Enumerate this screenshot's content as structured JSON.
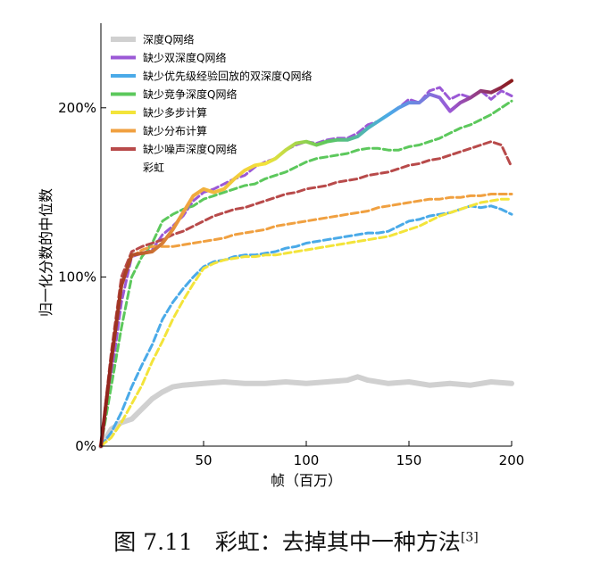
{
  "chart_data": {
    "type": "line",
    "title": "",
    "xlabel": "帧（百万）",
    "ylabel": "归一化分数的中位数",
    "xlim": [
      0,
      200
    ],
    "ylim": [
      0,
      250
    ],
    "x_ticks": [
      50,
      100,
      150,
      200
    ],
    "x_tick_labels": [
      "50",
      "100",
      "150",
      "200"
    ],
    "y_ticks": [
      0,
      100,
      200
    ],
    "y_tick_labels": [
      "0%",
      "100%",
      "200%"
    ],
    "grid": false,
    "legend_position": "top-left",
    "series": [
      {
        "name": "深度Q网络",
        "color": "#d0d0d0",
        "style": "solid",
        "width": 6,
        "points": [
          [
            0,
            0
          ],
          [
            5,
            10
          ],
          [
            10,
            14
          ],
          [
            15,
            16
          ],
          [
            20,
            22
          ],
          [
            25,
            28
          ],
          [
            30,
            32
          ],
          [
            35,
            35
          ],
          [
            40,
            36
          ],
          [
            50,
            37
          ],
          [
            60,
            38
          ],
          [
            70,
            37
          ],
          [
            80,
            37
          ],
          [
            90,
            38
          ],
          [
            100,
            37
          ],
          [
            110,
            38
          ],
          [
            120,
            39
          ],
          [
            125,
            41
          ],
          [
            130,
            39
          ],
          [
            140,
            37
          ],
          [
            150,
            38
          ],
          [
            160,
            36
          ],
          [
            170,
            37
          ],
          [
            180,
            36
          ],
          [
            190,
            38
          ],
          [
            200,
            37
          ]
        ]
      },
      {
        "name": "缺少双深度Q网络",
        "color": "#9b59d6",
        "style": "dashed",
        "width": 3,
        "points": [
          [
            0,
            0
          ],
          [
            5,
            40
          ],
          [
            10,
            85
          ],
          [
            15,
            112
          ],
          [
            20,
            114
          ],
          [
            25,
            116
          ],
          [
            30,
            125
          ],
          [
            35,
            130
          ],
          [
            40,
            136
          ],
          [
            45,
            145
          ],
          [
            50,
            150
          ],
          [
            55,
            152
          ],
          [
            60,
            155
          ],
          [
            65,
            158
          ],
          [
            70,
            160
          ],
          [
            75,
            165
          ],
          [
            80,
            168
          ],
          [
            85,
            170
          ],
          [
            90,
            175
          ],
          [
            95,
            178
          ],
          [
            100,
            180
          ],
          [
            105,
            179
          ],
          [
            110,
            181
          ],
          [
            115,
            182
          ],
          [
            120,
            182
          ],
          [
            125,
            185
          ],
          [
            130,
            190
          ],
          [
            135,
            192
          ],
          [
            140,
            196
          ],
          [
            145,
            200
          ],
          [
            150,
            205
          ],
          [
            155,
            203
          ],
          [
            160,
            210
          ],
          [
            165,
            212
          ],
          [
            170,
            205
          ],
          [
            175,
            208
          ],
          [
            180,
            206
          ],
          [
            185,
            210
          ],
          [
            190,
            205
          ],
          [
            195,
            210
          ],
          [
            200,
            207
          ]
        ]
      },
      {
        "name": "缺少优先级经验回放的双深度Q网络",
        "color": "#4aaae8",
        "style": "dashed",
        "width": 3,
        "points": [
          [
            0,
            0
          ],
          [
            5,
            8
          ],
          [
            10,
            20
          ],
          [
            15,
            35
          ],
          [
            20,
            48
          ],
          [
            25,
            60
          ],
          [
            30,
            75
          ],
          [
            35,
            85
          ],
          [
            40,
            93
          ],
          [
            45,
            100
          ],
          [
            50,
            106
          ],
          [
            55,
            109
          ],
          [
            60,
            110
          ],
          [
            65,
            112
          ],
          [
            70,
            113
          ],
          [
            75,
            113
          ],
          [
            80,
            114
          ],
          [
            85,
            115
          ],
          [
            90,
            117
          ],
          [
            95,
            118
          ],
          [
            100,
            120
          ],
          [
            105,
            121
          ],
          [
            110,
            122
          ],
          [
            115,
            123
          ],
          [
            120,
            124
          ],
          [
            125,
            125
          ],
          [
            130,
            126
          ],
          [
            135,
            126
          ],
          [
            140,
            127
          ],
          [
            145,
            130
          ],
          [
            150,
            133
          ],
          [
            155,
            134
          ],
          [
            160,
            136
          ],
          [
            165,
            137
          ],
          [
            170,
            138
          ],
          [
            175,
            140
          ],
          [
            180,
            142
          ],
          [
            185,
            141
          ],
          [
            190,
            142
          ],
          [
            195,
            140
          ],
          [
            200,
            137
          ]
        ]
      },
      {
        "name": "缺少竞争深度Q网络",
        "color": "#5cc85c",
        "style": "dashed",
        "width": 3,
        "points": [
          [
            0,
            0
          ],
          [
            5,
            35
          ],
          [
            10,
            70
          ],
          [
            15,
            100
          ],
          [
            20,
            112
          ],
          [
            25,
            120
          ],
          [
            30,
            133
          ],
          [
            35,
            137
          ],
          [
            40,
            140
          ],
          [
            45,
            142
          ],
          [
            50,
            146
          ],
          [
            55,
            148
          ],
          [
            60,
            150
          ],
          [
            65,
            152
          ],
          [
            70,
            154
          ],
          [
            75,
            155
          ],
          [
            80,
            158
          ],
          [
            85,
            160
          ],
          [
            90,
            162
          ],
          [
            95,
            165
          ],
          [
            100,
            168
          ],
          [
            105,
            170
          ],
          [
            110,
            171
          ],
          [
            115,
            172
          ],
          [
            120,
            173
          ],
          [
            125,
            175
          ],
          [
            130,
            176
          ],
          [
            135,
            176
          ],
          [
            140,
            175
          ],
          [
            145,
            175
          ],
          [
            150,
            177
          ],
          [
            155,
            178
          ],
          [
            160,
            180
          ],
          [
            165,
            182
          ],
          [
            170,
            185
          ],
          [
            175,
            188
          ],
          [
            180,
            190
          ],
          [
            185,
            193
          ],
          [
            190,
            196
          ],
          [
            195,
            200
          ],
          [
            200,
            204
          ]
        ]
      },
      {
        "name": "缺少多步计算",
        "color": "#f3e43a",
        "style": "dashed",
        "width": 3,
        "points": [
          [
            0,
            0
          ],
          [
            5,
            5
          ],
          [
            10,
            14
          ],
          [
            15,
            25
          ],
          [
            20,
            36
          ],
          [
            25,
            50
          ],
          [
            30,
            62
          ],
          [
            35,
            75
          ],
          [
            40,
            86
          ],
          [
            45,
            96
          ],
          [
            50,
            105
          ],
          [
            55,
            108
          ],
          [
            60,
            110
          ],
          [
            65,
            111
          ],
          [
            70,
            112
          ],
          [
            75,
            112
          ],
          [
            80,
            113
          ],
          [
            85,
            113
          ],
          [
            90,
            114
          ],
          [
            95,
            115
          ],
          [
            100,
            116
          ],
          [
            105,
            117
          ],
          [
            110,
            118
          ],
          [
            115,
            119
          ],
          [
            120,
            120
          ],
          [
            125,
            121
          ],
          [
            130,
            122
          ],
          [
            135,
            123
          ],
          [
            140,
            124
          ],
          [
            145,
            126
          ],
          [
            150,
            128
          ],
          [
            155,
            130
          ],
          [
            160,
            133
          ],
          [
            165,
            136
          ],
          [
            170,
            138
          ],
          [
            175,
            140
          ],
          [
            180,
            142
          ],
          [
            185,
            144
          ],
          [
            190,
            145
          ],
          [
            195,
            146
          ],
          [
            200,
            146
          ]
        ]
      },
      {
        "name": "缺少分布计算",
        "color": "#f0a040",
        "style": "dashed",
        "width": 3,
        "points": [
          [
            0,
            0
          ],
          [
            5,
            50
          ],
          [
            10,
            95
          ],
          [
            15,
            112
          ],
          [
            20,
            116
          ],
          [
            25,
            118
          ],
          [
            30,
            118
          ],
          [
            35,
            118
          ],
          [
            40,
            119
          ],
          [
            45,
            120
          ],
          [
            50,
            121
          ],
          [
            55,
            122
          ],
          [
            60,
            123
          ],
          [
            65,
            125
          ],
          [
            70,
            126
          ],
          [
            75,
            127
          ],
          [
            80,
            128
          ],
          [
            85,
            130
          ],
          [
            90,
            131
          ],
          [
            95,
            132
          ],
          [
            100,
            133
          ],
          [
            105,
            134
          ],
          [
            110,
            135
          ],
          [
            115,
            136
          ],
          [
            120,
            137
          ],
          [
            125,
            138
          ],
          [
            130,
            139
          ],
          [
            135,
            141
          ],
          [
            140,
            142
          ],
          [
            145,
            143
          ],
          [
            150,
            144
          ],
          [
            155,
            145
          ],
          [
            160,
            146
          ],
          [
            165,
            146
          ],
          [
            170,
            147
          ],
          [
            175,
            147
          ],
          [
            180,
            148
          ],
          [
            185,
            148
          ],
          [
            190,
            149
          ],
          [
            195,
            149
          ],
          [
            200,
            149
          ]
        ]
      },
      {
        "name": "缺少噪声深度Q网络",
        "color": "#b84a4a",
        "style": "dashed",
        "width": 3,
        "points": [
          [
            0,
            0
          ],
          [
            5,
            55
          ],
          [
            10,
            100
          ],
          [
            15,
            115
          ],
          [
            20,
            118
          ],
          [
            25,
            120
          ],
          [
            30,
            122
          ],
          [
            35,
            125
          ],
          [
            40,
            127
          ],
          [
            45,
            130
          ],
          [
            50,
            133
          ],
          [
            55,
            136
          ],
          [
            60,
            138
          ],
          [
            65,
            140
          ],
          [
            70,
            141
          ],
          [
            75,
            143
          ],
          [
            80,
            145
          ],
          [
            85,
            147
          ],
          [
            90,
            149
          ],
          [
            95,
            150
          ],
          [
            100,
            152
          ],
          [
            105,
            153
          ],
          [
            110,
            154
          ],
          [
            115,
            156
          ],
          [
            120,
            157
          ],
          [
            125,
            158
          ],
          [
            130,
            160
          ],
          [
            135,
            161
          ],
          [
            140,
            162
          ],
          [
            145,
            164
          ],
          [
            150,
            166
          ],
          [
            155,
            167
          ],
          [
            160,
            169
          ],
          [
            165,
            170
          ],
          [
            170,
            172
          ],
          [
            175,
            174
          ],
          [
            180,
            176
          ],
          [
            185,
            178
          ],
          [
            190,
            180
          ],
          [
            195,
            178
          ],
          [
            200,
            165
          ]
        ]
      },
      {
        "name": "彩虹",
        "color": "#8b1a1a",
        "style": "rainbow",
        "width": 4,
        "points": [
          [
            0,
            0
          ],
          [
            5,
            50
          ],
          [
            10,
            95
          ],
          [
            15,
            113
          ],
          [
            20,
            114
          ],
          [
            25,
            115
          ],
          [
            30,
            120
          ],
          [
            35,
            128
          ],
          [
            40,
            138
          ],
          [
            45,
            148
          ],
          [
            50,
            152
          ],
          [
            55,
            150
          ],
          [
            60,
            152
          ],
          [
            65,
            158
          ],
          [
            70,
            163
          ],
          [
            75,
            166
          ],
          [
            80,
            167
          ],
          [
            85,
            170
          ],
          [
            90,
            175
          ],
          [
            95,
            179
          ],
          [
            100,
            180
          ],
          [
            105,
            178
          ],
          [
            110,
            180
          ],
          [
            115,
            181
          ],
          [
            120,
            181
          ],
          [
            125,
            183
          ],
          [
            130,
            188
          ],
          [
            135,
            192
          ],
          [
            140,
            196
          ],
          [
            145,
            200
          ],
          [
            150,
            203
          ],
          [
            155,
            203
          ],
          [
            160,
            208
          ],
          [
            165,
            206
          ],
          [
            170,
            198
          ],
          [
            175,
            203
          ],
          [
            180,
            206
          ],
          [
            185,
            210
          ],
          [
            190,
            209
          ],
          [
            195,
            212
          ],
          [
            200,
            216
          ]
        ]
      }
    ]
  },
  "caption": {
    "text": "图 7.11　彩虹：去掉其中一种方法",
    "ref": "[3]"
  }
}
